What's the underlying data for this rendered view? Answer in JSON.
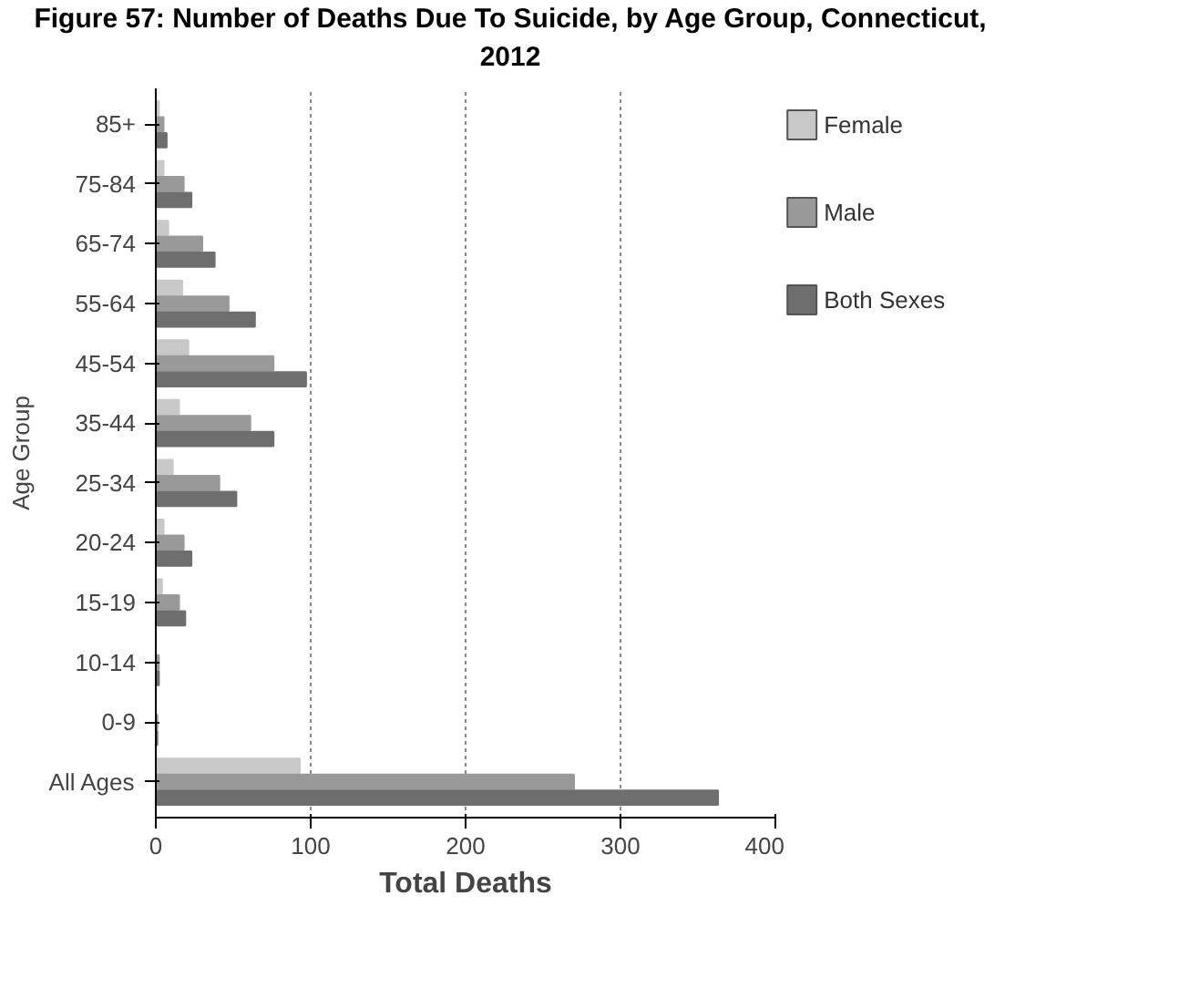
{
  "chart_data": {
    "type": "bar",
    "orientation": "horizontal",
    "title": "Figure 57: Number of Deaths Due To Suicide, by Age Group, Connecticut, 2012",
    "xlabel": "Total Deaths",
    "ylabel": "Age Group",
    "categories": [
      "85+",
      "75-84",
      "65-74",
      "55-64",
      "45-54",
      "35-44",
      "25-34",
      "20-24",
      "15-19",
      "10-14",
      "0-9",
      "All Ages"
    ],
    "series": [
      {
        "name": "Female",
        "color": "#c8c8c8",
        "values": [
          2,
          5,
          8,
          17,
          21,
          15,
          11,
          5,
          4,
          0,
          0,
          93
        ]
      },
      {
        "name": "Male",
        "color": "#999999",
        "values": [
          5,
          18,
          30,
          47,
          76,
          61,
          41,
          18,
          15,
          2,
          1,
          270
        ]
      },
      {
        "name": "Both Sexes",
        "color": "#6e6e6e",
        "values": [
          7,
          23,
          38,
          64,
          97,
          76,
          52,
          23,
          19,
          2,
          1,
          363
        ]
      }
    ],
    "xlim": [
      0,
      400
    ],
    "xticks": [
      0,
      100,
      200,
      300,
      400
    ],
    "grid": "x",
    "legend": "right"
  }
}
